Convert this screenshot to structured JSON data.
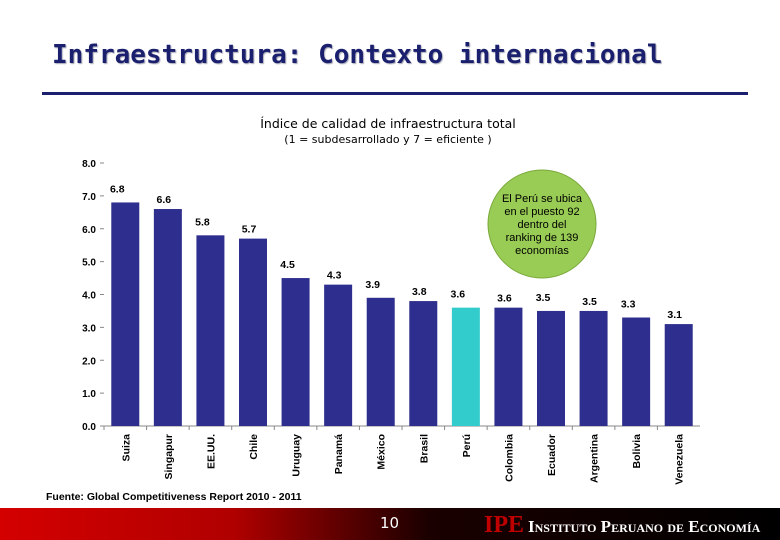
{
  "slide": {
    "title": "Infraestructura: Contexto internacional",
    "source": "Fuente: Global Competitiveness Report 2010 - 2011",
    "page_number": "10"
  },
  "logo": {
    "mark": "IPE",
    "text": "Instituto Peruano de Economía"
  },
  "colors": {
    "title": "#1a1f6e",
    "bar": "#2e2e8e",
    "highlight_bar": "#33cccc",
    "callout_fill": "#99cc55",
    "footer_red": "#c00000"
  },
  "chart_data": {
    "type": "bar",
    "title": "Índice de calidad de infraestructura total",
    "subtitle": "(1 = subdesarrollado y 7 = eficiente )",
    "categories": [
      "Suiza",
      "Singapur",
      "EE.UU.",
      "Chile",
      "Uruguay",
      "Panamá",
      "México",
      "Brasil",
      "Perú",
      "Colombia",
      "Ecuador",
      "Argentina",
      "Bolivia",
      "Venezuela"
    ],
    "values": [
      6.8,
      6.6,
      5.8,
      5.7,
      4.5,
      4.3,
      3.9,
      3.8,
      3.6,
      3.6,
      3.5,
      3.5,
      3.3,
      3.1
    ],
    "value_labels": [
      "6.8",
      "6.6",
      "5.8",
      "5.7",
      "4.5",
      "4.3",
      "3.9",
      "3.8",
      "3.6",
      "3.6",
      "3.5",
      "3.5",
      "3.3",
      "3.1"
    ],
    "highlight_category": "Perú",
    "yticks": [
      "0.0",
      "1.0",
      "2.0",
      "3.0",
      "4.0",
      "5.0",
      "6.0",
      "7.0",
      "8.0"
    ],
    "ylim": [
      0,
      8
    ],
    "grid": false,
    "annotation": "El Perú se ubica en el puesto 92 dentro del ranking de 139 economías"
  }
}
